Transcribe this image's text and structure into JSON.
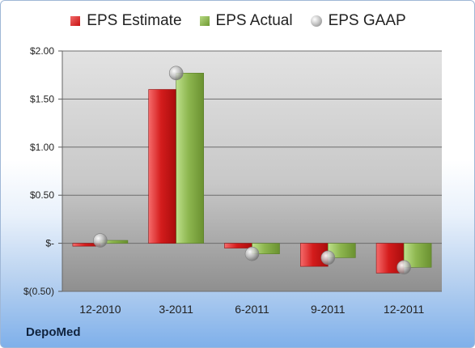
{
  "chart_data": {
    "type": "bar",
    "categories": [
      "12-2010",
      "3-2011",
      "6-2011",
      "9-2011",
      "12-2011"
    ],
    "series": [
      {
        "name": "EPS Estimate",
        "values": [
          -0.03,
          1.6,
          -0.05,
          -0.24,
          -0.31
        ],
        "color": "#d42020"
      },
      {
        "name": "EPS Actual",
        "values": [
          0.03,
          1.77,
          -0.11,
          -0.15,
          -0.25
        ],
        "color": "#8db64f"
      },
      {
        "name": "EPS GAAP",
        "values": [
          0.03,
          1.77,
          -0.11,
          -0.15,
          -0.25
        ],
        "color": "#a8a8a8",
        "marker": "sphere"
      }
    ],
    "ylim": [
      -0.5,
      2.0
    ],
    "yticks": [
      2.0,
      1.5,
      1.0,
      0.5,
      0,
      -0.5
    ],
    "ytick_labels": [
      "$2.00",
      "$1.50",
      "$1.00",
      "$0.50",
      "$-",
      "$(0.50)"
    ],
    "grid": true,
    "legend_position": "top"
  },
  "legend": {
    "estimate": "EPS Estimate",
    "actual": "EPS Actual",
    "gaap": "EPS GAAP"
  },
  "company": "DepoMed"
}
